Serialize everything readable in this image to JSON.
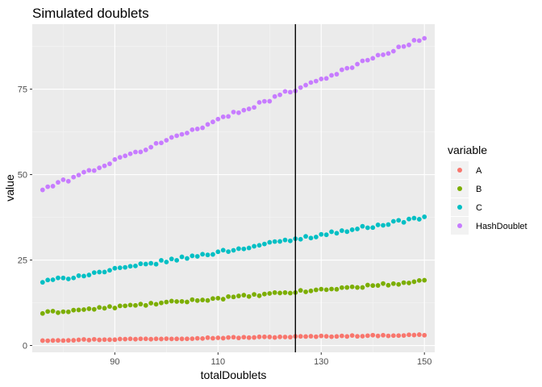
{
  "chart_data": {
    "type": "scatter",
    "title": "Simulated doublets",
    "xlabel": "totalDoublets",
    "ylabel": "value",
    "xlim": [
      74,
      152
    ],
    "ylim": [
      -2,
      94
    ],
    "x_ticks": [
      90,
      110,
      130,
      150
    ],
    "y_ticks": [
      0,
      25,
      50,
      75
    ],
    "x_tick_labels": [
      "90",
      "110",
      "130",
      "150"
    ],
    "y_tick_labels": [
      "0",
      "25",
      "50",
      "75"
    ],
    "x_range": [
      76,
      150
    ],
    "grid": true,
    "vline": 125,
    "legend": {
      "title": "variable",
      "placement": "right"
    },
    "series": [
      {
        "name": "A",
        "color": "#F8766D",
        "start": 1.5,
        "end": 3.1,
        "noise": 0.15
      },
      {
        "name": "B",
        "color": "#7CAE00",
        "start": 9.5,
        "end": 18.8,
        "noise": 0.35
      },
      {
        "name": "C",
        "color": "#00BFC4",
        "start": 18.6,
        "end": 37.5,
        "noise": 0.45
      },
      {
        "name": "HashDoublet",
        "color": "#C77CFF",
        "start": 45.6,
        "end": 90.0,
        "noise": 0.55
      }
    ]
  }
}
